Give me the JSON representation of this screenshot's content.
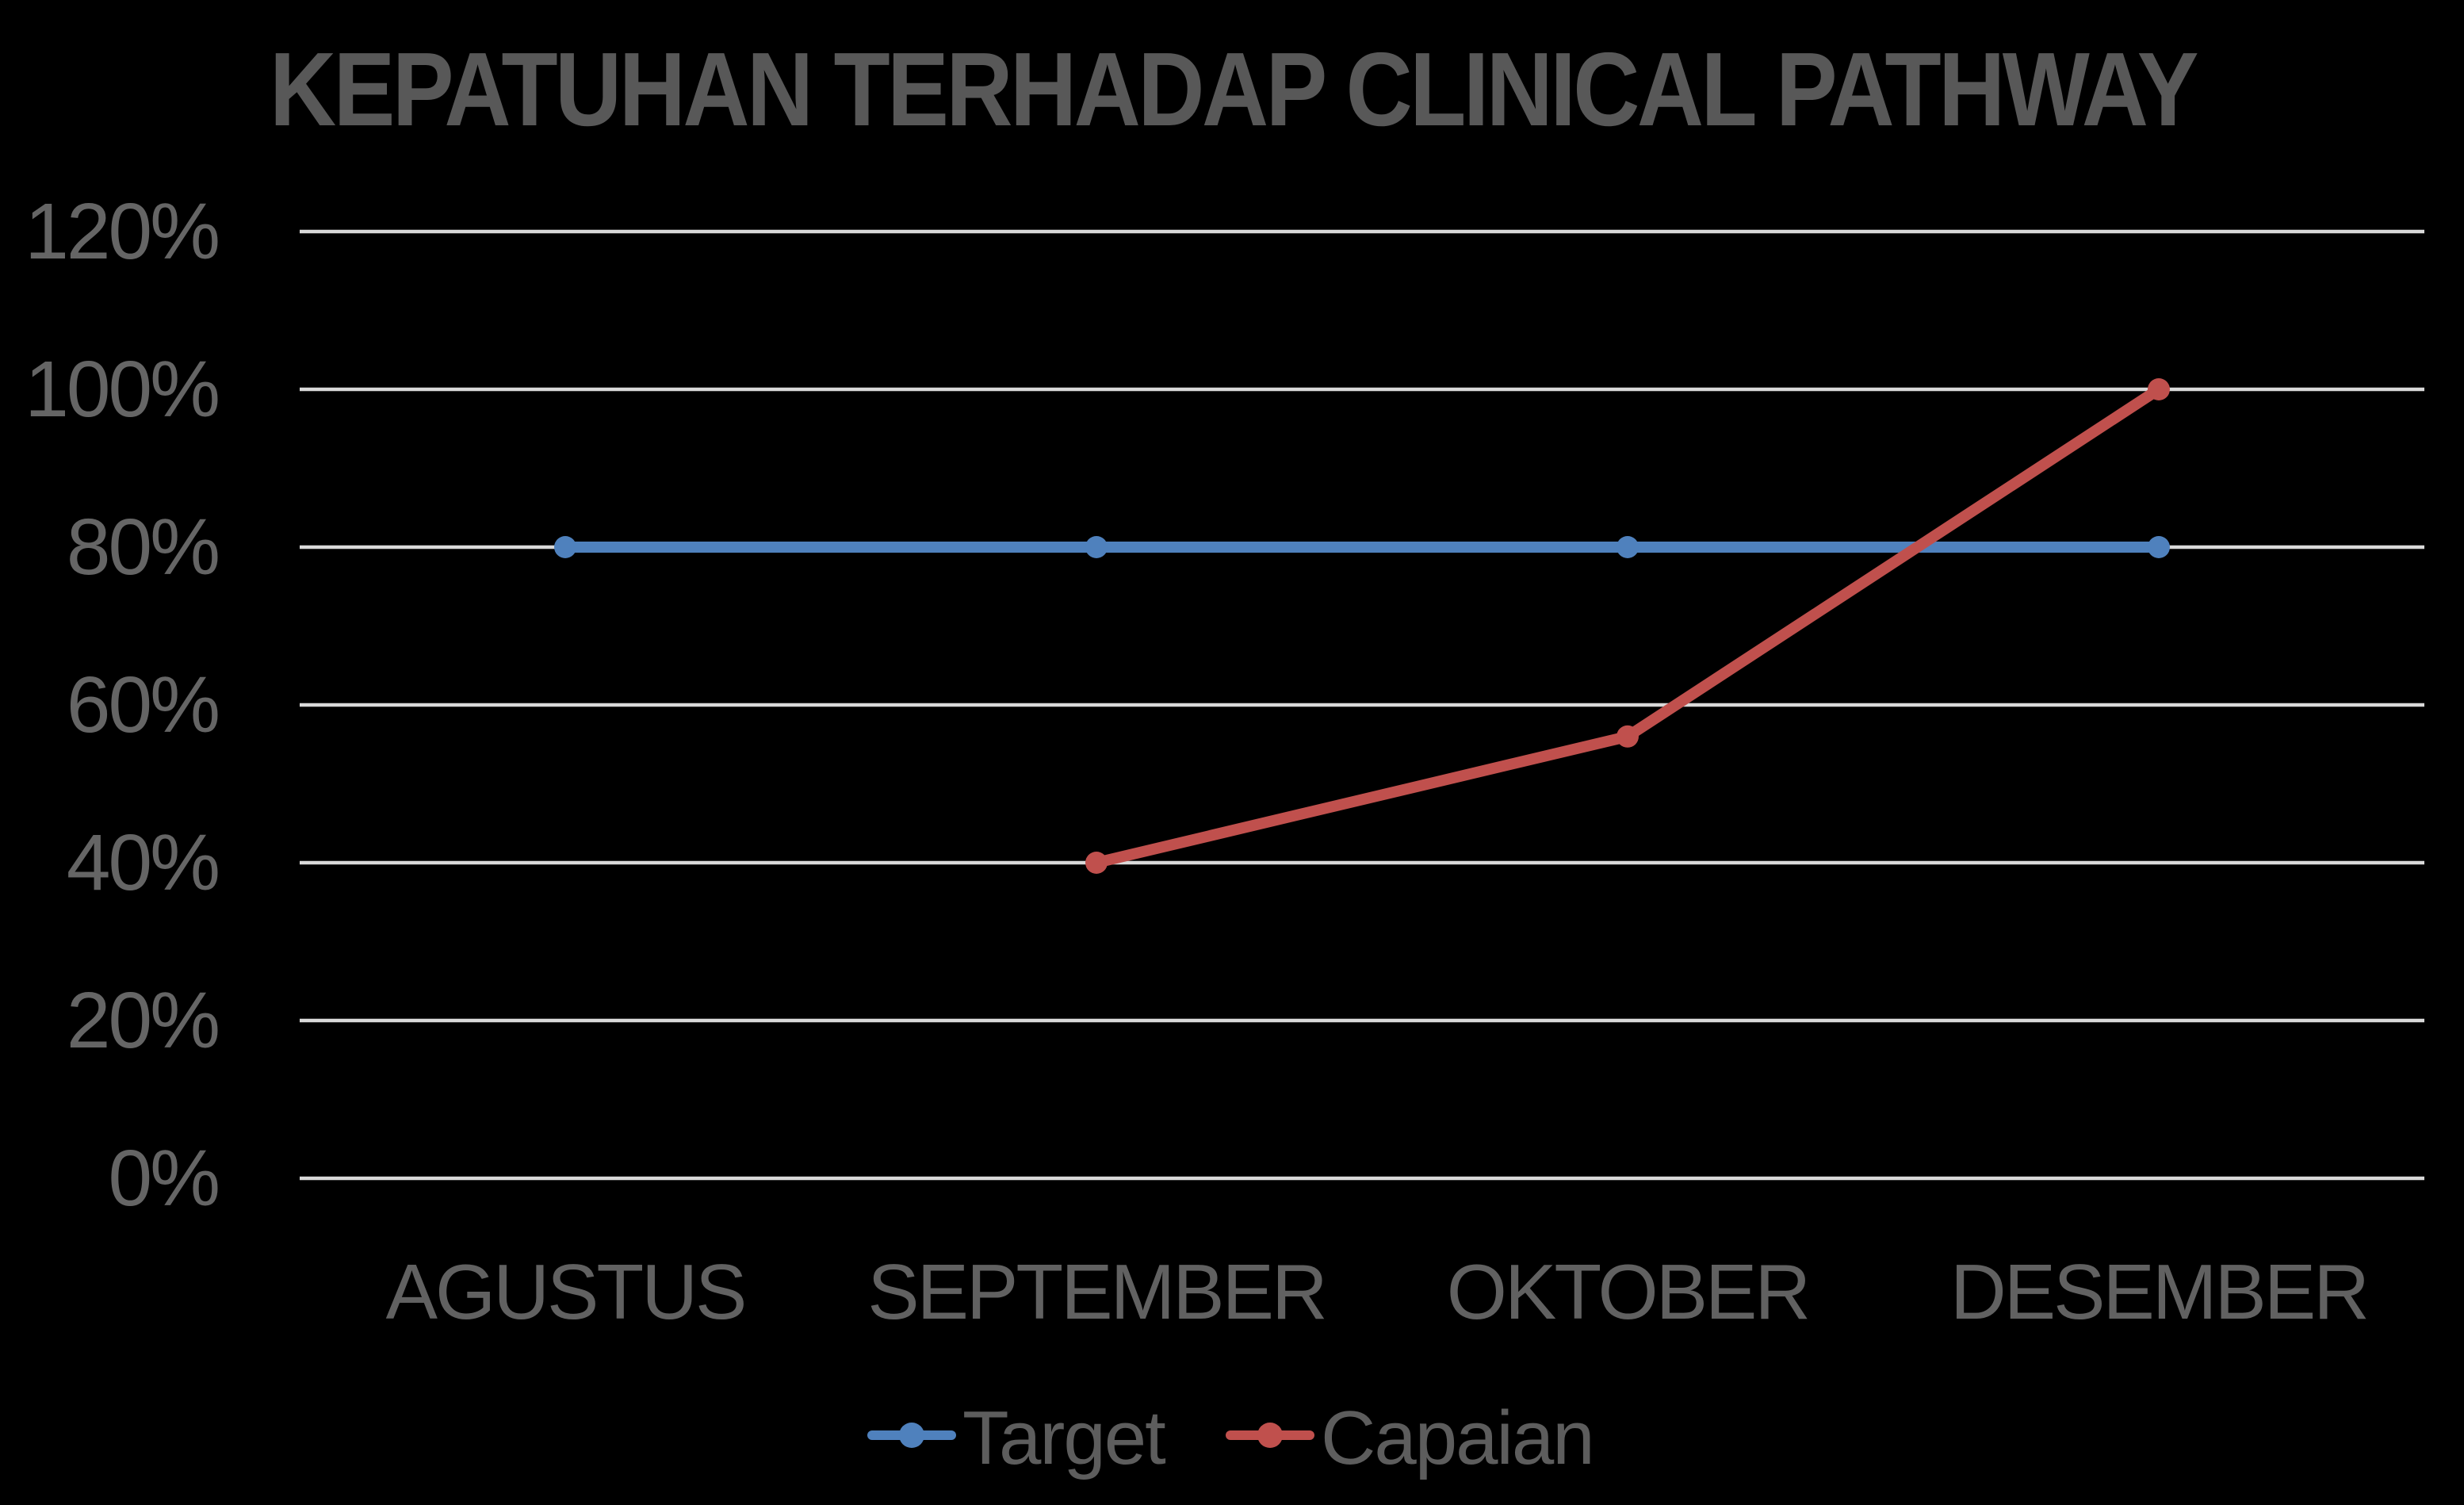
{
  "chart_data": {
    "type": "line",
    "title": "KEPATUHAN TERHADAP CLINICAL PATHWAY",
    "categories": [
      "AGUSTUS",
      "SEPTEMBER",
      "OKTOBER",
      "DESEMBER"
    ],
    "series": [
      {
        "name": "Target",
        "color": "#4F81BD",
        "values": [
          80,
          80,
          80,
          80
        ]
      },
      {
        "name": "Capaian",
        "color": "#C0504D",
        "values": [
          null,
          40,
          56,
          100
        ]
      }
    ],
    "y_ticks": [
      120,
      100,
      80,
      60,
      40,
      20,
      0
    ],
    "y_tick_labels": [
      "120%",
      "100%",
      "80%",
      "60%",
      "40%",
      "20%",
      "0%"
    ],
    "ylim": [
      0,
      120
    ],
    "y_unit": "%",
    "grid": "horizontal-only",
    "legend_position": "bottom-center",
    "colors": {
      "background": "#000000",
      "gridline": "#D9D9D9",
      "title_text": "#585858",
      "axis_text": "#616161"
    }
  }
}
